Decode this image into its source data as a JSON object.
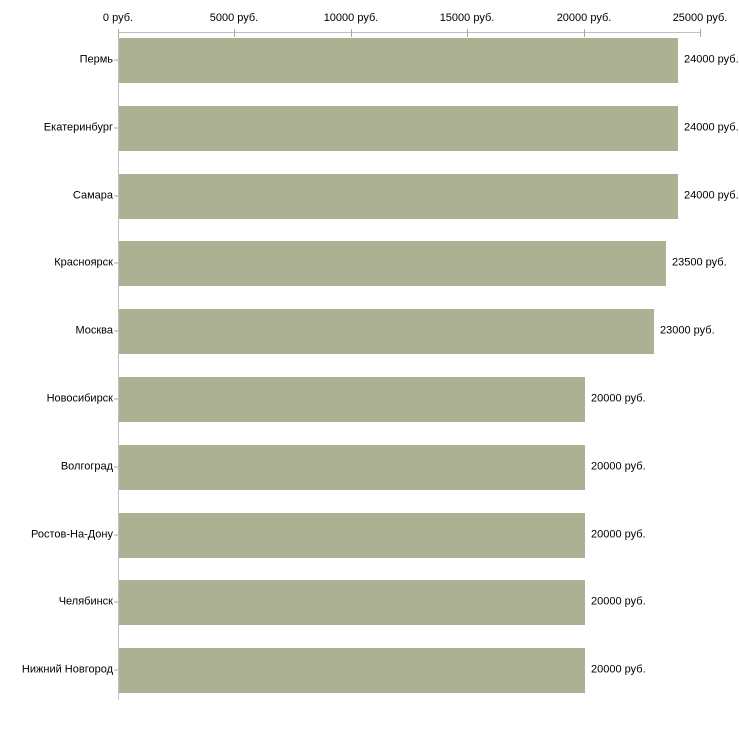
{
  "chart_data": {
    "type": "bar",
    "orientation": "horizontal",
    "title": "",
    "categories": [
      "Пермь",
      "Екатеринбург",
      "Самара",
      "Красноярск",
      "Москва",
      "Новосибирск",
      "Волгоград",
      "Ростов-На-Дону",
      "Челябинск",
      "Нижний Новгород"
    ],
    "values": [
      24000,
      24000,
      24000,
      23500,
      23000,
      20000,
      20000,
      20000,
      20000,
      20000
    ],
    "value_labels": [
      "24000 руб.",
      "24000 руб.",
      "24000 руб.",
      "23500 руб.",
      "23000 руб.",
      "20000 руб.",
      "20000 руб.",
      "20000 руб.",
      "20000 руб.",
      "20000 руб."
    ],
    "x_axis": {
      "position": "top",
      "range": [
        0,
        25000
      ],
      "ticks": [
        0,
        5000,
        10000,
        15000,
        20000,
        25000
      ],
      "tick_labels": [
        "0 руб.",
        "5000 руб.",
        "10000 руб.",
        "15000 руб.",
        "20000 руб.",
        "25000 руб."
      ],
      "unit": "руб."
    },
    "ylabel": "",
    "xlabel": "",
    "legend": "none",
    "grid": "off",
    "colors": {
      "bar": "#acb194",
      "axis_line": "#c0c0c0",
      "tick_mark": "#b3a97c",
      "text": "#000000",
      "background": "#ffffff"
    }
  }
}
